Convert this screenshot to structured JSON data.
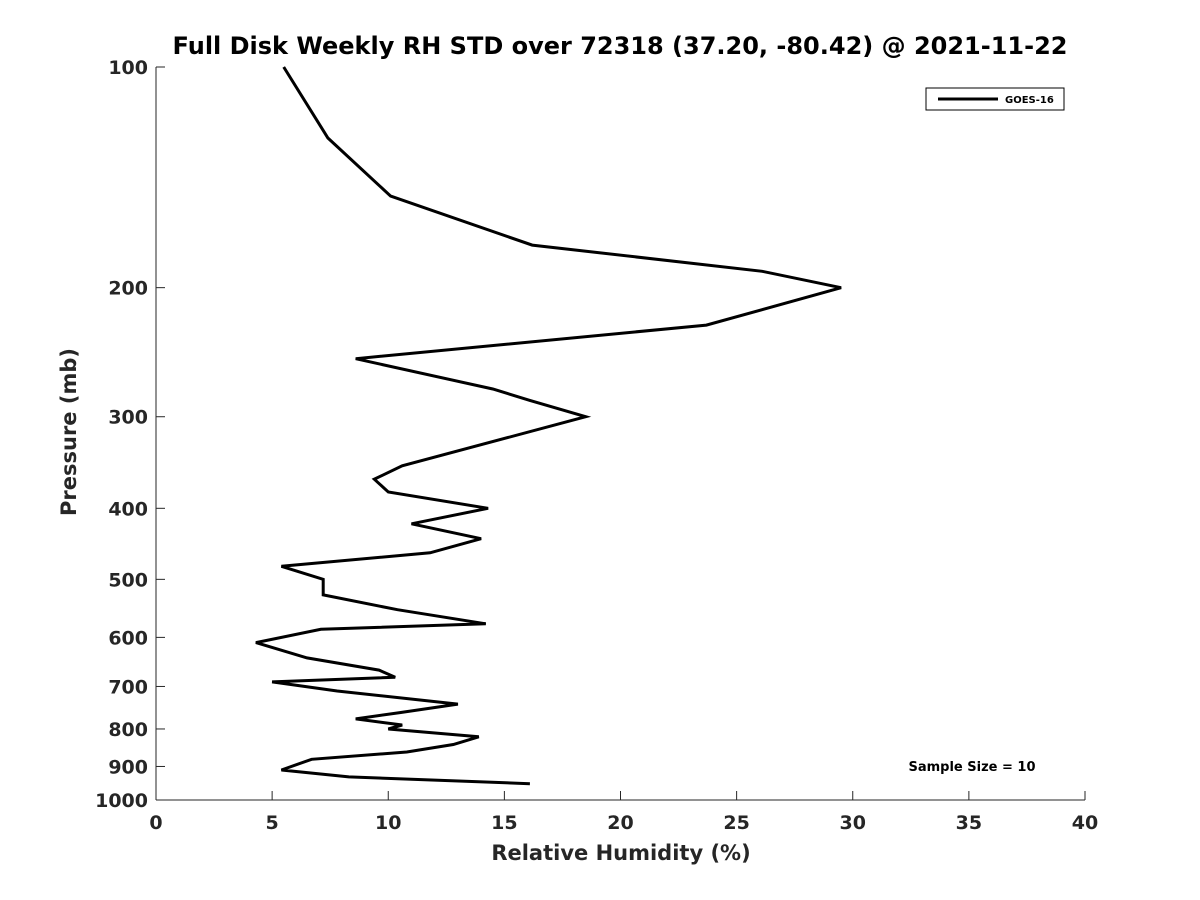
{
  "chart_data": {
    "type": "line",
    "title": "Full Disk Weekly RH STD over 72318 (37.20, -80.42) @ 2021-11-22",
    "xlabel": "Relative Humidity (%)",
    "ylabel": "Pressure (mb)",
    "xlim": [
      0,
      40
    ],
    "ylim": [
      100,
      1000
    ],
    "yscale": "log",
    "yinverted": true,
    "xticks": [
      0,
      5,
      10,
      15,
      20,
      25,
      30,
      35,
      40
    ],
    "yticks": [
      100,
      200,
      300,
      400,
      500,
      600,
      700,
      800,
      900,
      1000
    ],
    "grid": false,
    "legend_position": "top-right",
    "annotation": "Sample Size = 10",
    "series": [
      {
        "name": "GOES-16",
        "color": "#000000",
        "points": [
          [
            5.5,
            100
          ],
          [
            7.4,
            125
          ],
          [
            10.1,
            150
          ],
          [
            16.2,
            175
          ],
          [
            26.1,
            190
          ],
          [
            29.5,
            200
          ],
          [
            23.7,
            225
          ],
          [
            8.6,
            250
          ],
          [
            14.5,
            275
          ],
          [
            16.1,
            285
          ],
          [
            18.5,
            300
          ],
          [
            10.6,
            350
          ],
          [
            9.4,
            365
          ],
          [
            10.0,
            380
          ],
          [
            14.3,
            400
          ],
          [
            11.0,
            420
          ],
          [
            14.0,
            440
          ],
          [
            11.8,
            460
          ],
          [
            5.4,
            480
          ],
          [
            7.2,
            500
          ],
          [
            7.2,
            525
          ],
          [
            10.4,
            550
          ],
          [
            14.2,
            575
          ],
          [
            7.1,
            585
          ],
          [
            4.3,
            610
          ],
          [
            6.5,
            640
          ],
          [
            9.6,
            665
          ],
          [
            10.3,
            680
          ],
          [
            5.0,
            690
          ],
          [
            7.8,
            710
          ],
          [
            13.0,
            740
          ],
          [
            10.5,
            760
          ],
          [
            8.6,
            775
          ],
          [
            10.6,
            790
          ],
          [
            10.0,
            800
          ],
          [
            13.9,
            820
          ],
          [
            12.8,
            840
          ],
          [
            10.8,
            860
          ],
          [
            6.7,
            880
          ],
          [
            5.4,
            910
          ],
          [
            8.3,
            930
          ],
          [
            16.1,
            950
          ]
        ]
      }
    ]
  }
}
